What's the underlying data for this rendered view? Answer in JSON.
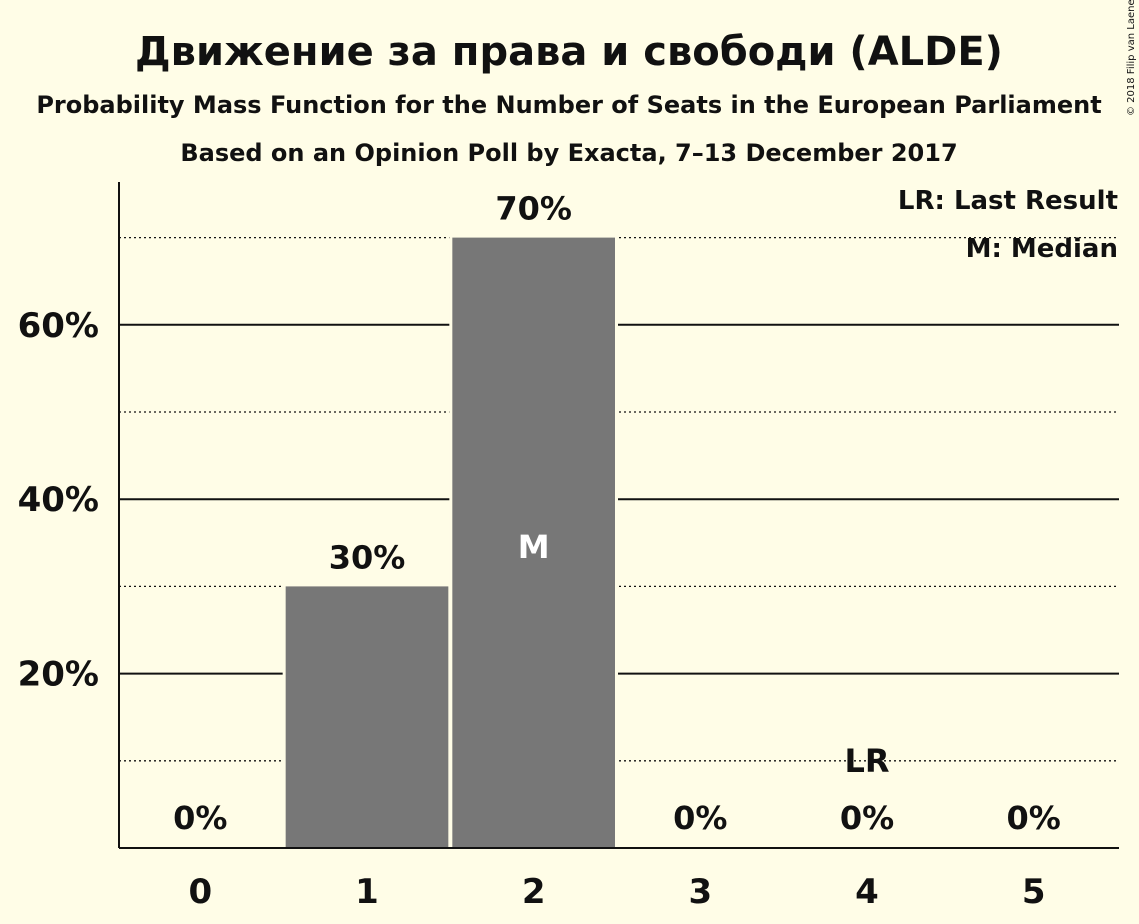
{
  "chart_data": {
    "type": "bar",
    "title": "Движение за права и свободи (ALDE)",
    "subtitle": "Probability Mass Function for the Number of Seats in the European Parliament",
    "subtitle2": "Based on an Opinion Poll by Exacta, 7–13 December 2017",
    "categories": [
      "0",
      "1",
      "2",
      "3",
      "4",
      "5"
    ],
    "values": [
      0,
      30,
      70,
      0,
      0,
      0
    ],
    "value_labels": [
      "0%",
      "30%",
      "70%",
      "0%",
      "0%",
      "0%"
    ],
    "ylim": [
      0,
      76
    ],
    "yticks": [
      20,
      40,
      60
    ],
    "ytick_labels": [
      "20%",
      "40%",
      "60%"
    ],
    "minor_gridlines": [
      10,
      30,
      50,
      70
    ],
    "median_category": "2",
    "median_marker": "M",
    "last_result_category": "4",
    "last_result_marker": "LR",
    "legend": [
      "LR: Last Result",
      "M: Median"
    ],
    "legend_position": "top-right",
    "bar_color": "#777777",
    "background_color": "#fffde7"
  },
  "copyright": "© 2018 Filip van Laenen"
}
